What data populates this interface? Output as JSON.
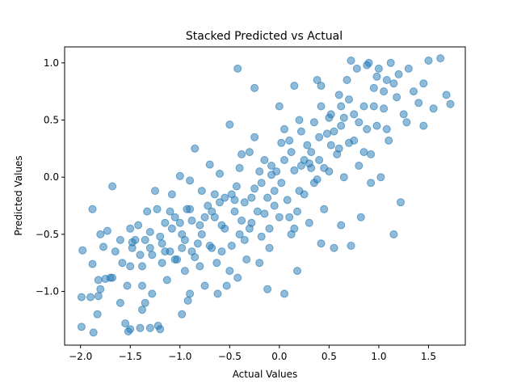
{
  "chart_data": {
    "type": "scatter",
    "title": "Stacked Predicted vs Actual",
    "xlabel": "Actual Values",
    "ylabel": "Predicted Values",
    "xlim": [
      -2.16,
      1.87
    ],
    "ylim": [
      -1.47,
      1.14
    ],
    "xticks": [
      -2.0,
      -1.5,
      -1.0,
      -0.5,
      0.0,
      0.5,
      1.0,
      1.5
    ],
    "xtick_labels": [
      "−2.0",
      "−1.5",
      "−1.0",
      "−0.5",
      "0.0",
      "0.5",
      "1.0",
      "1.5"
    ],
    "yticks": [
      -1.0,
      -0.5,
      0.0,
      0.5,
      1.0
    ],
    "ytick_labels": [
      "−1.0",
      "−0.5",
      "0.0",
      "0.5",
      "1.0"
    ],
    "grid": false,
    "legend": "none",
    "marker_color": "#1f77b4",
    "alpha": 0.5,
    "points": [
      [
        -1.99,
        -1.05
      ],
      [
        -1.98,
        -0.64
      ],
      [
        -1.9,
        -1.05
      ],
      [
        -1.88,
        -0.76
      ],
      [
        -1.88,
        -0.28
      ],
      [
        -1.87,
        -1.36
      ],
      [
        -1.99,
        -1.31
      ],
      [
        -1.83,
        -1.2
      ],
      [
        -1.82,
        -0.9
      ],
      [
        -1.82,
        -1.04
      ],
      [
        -1.8,
        -0.98
      ],
      [
        -1.8,
        -0.5
      ],
      [
        -1.77,
        -0.61
      ],
      [
        -1.75,
        -0.89
      ],
      [
        -1.73,
        -0.47
      ],
      [
        -1.7,
        -0.88
      ],
      [
        -1.68,
        -0.08
      ],
      [
        -1.65,
        -0.65
      ],
      [
        -1.6,
        -1.1
      ],
      [
        -1.55,
        -1.28
      ],
      [
        -1.53,
        -0.95
      ],
      [
        -1.5,
        -1.33
      ],
      [
        -1.5,
        -0.78
      ],
      [
        -1.48,
        -0.57
      ],
      [
        -1.45,
        -0.55
      ],
      [
        -1.42,
        -0.42
      ],
      [
        -1.4,
        -1.32
      ],
      [
        -1.38,
        -1.16
      ],
      [
        -1.38,
        -0.78
      ],
      [
        -1.35,
        -0.55
      ],
      [
        -1.33,
        -0.3
      ],
      [
        -1.3,
        -1.32
      ],
      [
        -1.3,
        -0.62
      ],
      [
        -1.28,
        -1.02
      ],
      [
        -1.25,
        -0.12
      ],
      [
        -1.23,
        -0.28
      ],
      [
        -1.2,
        -1.33
      ],
      [
        -1.18,
        -0.58
      ],
      [
        -1.15,
        -0.4
      ],
      [
        -1.13,
        -0.9
      ],
      [
        -1.1,
        -0.65
      ],
      [
        -1.08,
        -0.15
      ],
      [
        -1.05,
        -0.35
      ],
      [
        -1.03,
        -0.72
      ],
      [
        -1.0,
        0.01
      ],
      [
        -0.98,
        -0.5
      ],
      [
        -0.95,
        -0.82
      ],
      [
        -0.93,
        -0.28
      ],
      [
        -0.9,
        -0.03
      ],
      [
        -0.9,
        -1.02
      ],
      [
        -0.88,
        -0.65
      ],
      [
        -0.85,
        0.25
      ],
      [
        -0.82,
        -0.58
      ],
      [
        -0.8,
        -0.42
      ],
      [
        -0.78,
        -0.12
      ],
      [
        -0.75,
        -0.95
      ],
      [
        -0.72,
        -0.25
      ],
      [
        -0.7,
        0.11
      ],
      [
        -0.68,
        -0.62
      ],
      [
        -0.65,
        -0.35
      ],
      [
        -0.63,
        -0.75
      ],
      [
        -0.6,
        0.03
      ],
      [
        -0.58,
        -0.42
      ],
      [
        -0.55,
        -0.18
      ],
      [
        -0.53,
        -0.95
      ],
      [
        -0.5,
        0.46
      ],
      [
        -0.48,
        -0.6
      ],
      [
        -0.45,
        -0.3
      ],
      [
        -0.43,
        -0.08
      ],
      [
        -0.4,
        -0.5
      ],
      [
        -0.38,
        0.2
      ],
      [
        -0.35,
        -0.22
      ],
      [
        -0.33,
        -0.72
      ],
      [
        -0.3,
        0.22
      ],
      [
        -0.28,
        -0.4
      ],
      [
        -0.25,
        -0.1
      ],
      [
        -0.22,
        -0.3
      ],
      [
        -0.2,
        0.05
      ],
      [
        -0.18,
        -0.52
      ],
      [
        -0.15,
        0.15
      ],
      [
        -0.12,
        -0.18
      ],
      [
        -0.1,
        -0.45
      ],
      [
        -0.08,
        0.1
      ],
      [
        -0.05,
        -0.25
      ],
      [
        -0.03,
        0.05
      ],
      [
        0.0,
        -0.35
      ],
      [
        0.0,
        0.62
      ],
      [
        0.02,
        -0.05
      ],
      [
        0.05,
        -1.02
      ],
      [
        0.05,
        0.15
      ],
      [
        0.08,
        -0.2
      ],
      [
        0.1,
        0.32
      ],
      [
        0.12,
        -0.5
      ],
      [
        0.15,
        0.06
      ],
      [
        0.18,
        -0.3
      ],
      [
        0.2,
        0.5
      ],
      [
        0.22,
        0.1
      ],
      [
        0.25,
        -0.15
      ],
      [
        0.28,
        0.28
      ],
      [
        0.3,
        -0.4
      ],
      [
        0.32,
        0.22
      ],
      [
        0.35,
        0.48
      ],
      [
        0.38,
        -0.02
      ],
      [
        0.4,
        0.15
      ],
      [
        0.42,
        0.8
      ],
      [
        0.45,
        -0.28
      ],
      [
        0.48,
        0.38
      ],
      [
        0.5,
        0.05
      ],
      [
        0.52,
        0.55
      ],
      [
        0.55,
        -0.62
      ],
      [
        0.58,
        0.2
      ],
      [
        0.6,
        0.72
      ],
      [
        0.62,
        0.45
      ],
      [
        0.65,
        0.0
      ],
      [
        0.68,
        0.85
      ],
      [
        0.7,
        0.3
      ],
      [
        0.72,
        -0.6
      ],
      [
        0.75,
        0.55
      ],
      [
        0.78,
        0.95
      ],
      [
        0.8,
        0.1
      ],
      [
        0.82,
        -0.35
      ],
      [
        0.85,
        0.62
      ],
      [
        0.88,
        0.42
      ],
      [
        0.9,
        1.0
      ],
      [
        0.92,
        0.2
      ],
      [
        0.95,
        0.78
      ],
      [
        0.98,
        0.45
      ],
      [
        1.0,
        0.95
      ],
      [
        1.02,
        0.0
      ],
      [
        1.05,
        0.6
      ],
      [
        1.08,
        0.85
      ],
      [
        1.1,
        0.32
      ],
      [
        1.12,
        1.0
      ],
      [
        1.15,
        -0.5
      ],
      [
        1.18,
        0.7
      ],
      [
        1.2,
        0.9
      ],
      [
        1.25,
        0.55
      ],
      [
        1.3,
        0.95
      ],
      [
        1.35,
        0.75
      ],
      [
        1.4,
        0.65
      ],
      [
        1.45,
        0.82
      ],
      [
        1.5,
        1.02
      ],
      [
        1.55,
        0.6
      ],
      [
        1.62,
        1.04
      ],
      [
        1.68,
        0.72
      ],
      [
        1.72,
        0.64
      ],
      [
        1.45,
        0.45
      ],
      [
        1.28,
        0.48
      ],
      [
        1.22,
        -0.22
      ],
      [
        1.08,
        0.42
      ],
      [
        0.98,
        0.88
      ],
      [
        0.88,
        0.98
      ],
      [
        0.72,
        1.02
      ],
      [
        0.62,
        0.62
      ],
      [
        0.52,
        0.28
      ],
      [
        0.42,
        0.62
      ],
      [
        0.32,
        0.08
      ],
      [
        0.22,
        0.4
      ],
      [
        0.12,
        0.22
      ],
      [
        0.02,
        0.3
      ],
      [
        -0.08,
        0.02
      ],
      [
        -0.18,
        -0.05
      ],
      [
        -0.28,
        -0.18
      ],
      [
        -0.38,
        -0.38
      ],
      [
        -0.48,
        -0.15
      ],
      [
        -0.58,
        -0.65
      ],
      [
        -0.68,
        -0.3
      ],
      [
        -0.78,
        -0.5
      ],
      [
        -0.88,
        -0.38
      ],
      [
        -0.98,
        -0.62
      ],
      [
        -1.08,
        -0.45
      ],
      [
        -1.18,
        -0.75
      ],
      [
        -1.28,
        -0.68
      ],
      [
        -1.38,
        -0.95
      ],
      [
        -1.48,
        -0.62
      ],
      [
        -1.58,
        -0.75
      ],
      [
        -1.68,
        -0.88
      ],
      [
        -0.2,
        -0.75
      ],
      [
        -0.1,
        -0.62
      ],
      [
        0.1,
        -0.35
      ],
      [
        0.2,
        -0.12
      ],
      [
        -0.3,
        -0.45
      ],
      [
        -0.4,
        0.08
      ],
      [
        0.3,
        0.12
      ],
      [
        0.4,
        0.35
      ],
      [
        0.5,
        0.52
      ],
      [
        0.6,
        0.25
      ],
      [
        0.7,
        0.68
      ],
      [
        0.8,
        0.48
      ],
      [
        -0.5,
        -0.82
      ],
      [
        -0.6,
        -0.22
      ],
      [
        -0.7,
        -0.6
      ],
      [
        -0.8,
        -0.78
      ],
      [
        -0.9,
        -0.28
      ],
      [
        -1.0,
        -0.4
      ],
      [
        -1.1,
        -0.3
      ],
      [
        -1.2,
        -0.52
      ],
      [
        -1.3,
        -0.48
      ],
      [
        -1.4,
        -0.68
      ],
      [
        -1.5,
        -0.45
      ],
      [
        -1.6,
        -0.55
      ],
      [
        0.15,
        -0.45
      ],
      [
        -0.15,
        -0.32
      ],
      [
        -0.25,
        0.35
      ],
      [
        0.25,
        0.15
      ],
      [
        0.35,
        -0.05
      ],
      [
        0.45,
        0.08
      ],
      [
        -0.35,
        -0.55
      ],
      [
        -0.45,
        -0.2
      ],
      [
        0.05,
        0.42
      ],
      [
        -0.05,
        -0.12
      ],
      [
        0.55,
        0.4
      ],
      [
        -0.55,
        -0.45
      ],
      [
        0.65,
        0.52
      ],
      [
        -0.65,
        -0.15
      ],
      [
        0.75,
        0.32
      ],
      [
        -0.75,
        -0.35
      ],
      [
        0.85,
        0.22
      ],
      [
        -0.85,
        -0.7
      ],
      [
        0.95,
        0.62
      ],
      [
        -0.95,
        -0.55
      ],
      [
        1.05,
        0.75
      ],
      [
        -1.05,
        -0.72
      ],
      [
        1.15,
        0.82
      ],
      [
        -1.15,
        -0.65
      ],
      [
        -0.42,
        0.95
      ],
      [
        -0.25,
        0.78
      ],
      [
        0.15,
        0.8
      ],
      [
        0.38,
        0.85
      ],
      [
        -1.22,
        -1.3
      ],
      [
        -1.35,
        -1.1
      ],
      [
        -1.52,
        -1.35
      ],
      [
        -0.98,
        -1.2
      ],
      [
        -0.92,
        -1.08
      ],
      [
        -0.62,
        -1.02
      ],
      [
        -0.42,
        -0.88
      ],
      [
        -0.12,
        -0.98
      ],
      [
        0.18,
        -0.82
      ],
      [
        0.42,
        -0.58
      ],
      [
        0.62,
        -0.42
      ],
      [
        0.92,
        -0.05
      ]
    ]
  }
}
